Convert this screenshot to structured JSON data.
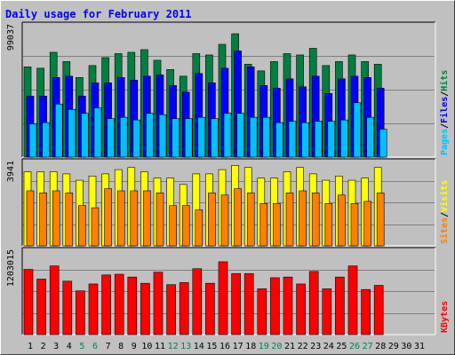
{
  "chart_data": [
    {
      "type": "bar",
      "title": "Daily usage for February 2011",
      "categories": [
        "1",
        "2",
        "3",
        "4",
        "5",
        "6",
        "7",
        "8",
        "9",
        "10",
        "11",
        "12",
        "13",
        "14",
        "15",
        "16",
        "17",
        "18",
        "19",
        "20",
        "21",
        "22",
        "23",
        "24",
        "25",
        "26",
        "27",
        "28",
        "29",
        "30",
        "31"
      ],
      "weekend_days": [
        "5",
        "6",
        "12",
        "13",
        "19",
        "20",
        "26",
        "27"
      ],
      "ymax_label": "99037",
      "ylim": [
        0,
        99037
      ],
      "right_labels": [
        "Pages",
        "/",
        "Files",
        "/",
        "Hits"
      ],
      "series": [
        {
          "name": "Hits",
          "color": "#008040",
          "values": [
            68000,
            67000,
            79000,
            72000,
            60000,
            69000,
            75000,
            78000,
            79000,
            81000,
            73000,
            66000,
            61000,
            78000,
            77000,
            85000,
            93000,
            70000,
            65000,
            72000,
            78000,
            77000,
            82000,
            69000,
            72000,
            77000,
            72000,
            70000,
            0,
            0,
            0
          ]
        },
        {
          "name": "Files",
          "color": "#0000ff",
          "values": [
            46000,
            46000,
            60000,
            61000,
            46000,
            56000,
            56000,
            60000,
            58000,
            61000,
            62000,
            54000,
            49000,
            63000,
            56000,
            67000,
            80000,
            68000,
            54000,
            52000,
            59000,
            53000,
            61000,
            48000,
            59000,
            61000,
            60000,
            52000,
            0,
            0,
            0
          ]
        },
        {
          "name": "Pages",
          "color": "#00c0ff",
          "values": [
            25000,
            26000,
            40000,
            36000,
            33000,
            37000,
            29000,
            30000,
            28000,
            33000,
            32000,
            29000,
            29000,
            30000,
            29000,
            33000,
            33000,
            30000,
            30000,
            26000,
            27000,
            26000,
            27000,
            27000,
            28000,
            41000,
            30000,
            21000,
            0,
            0,
            0
          ]
        }
      ]
    },
    {
      "type": "bar",
      "ymax_label": "3941",
      "ylim": [
        0,
        3941
      ],
      "right_labels": [
        "Sites",
        "/",
        "Visits"
      ],
      "series": [
        {
          "name": "Visits",
          "color": "#ffff00",
          "values": [
            3500,
            3500,
            3500,
            3400,
            3100,
            3300,
            3400,
            3600,
            3700,
            3500,
            3200,
            3200,
            2900,
            3400,
            3400,
            3600,
            3800,
            3700,
            3200,
            3200,
            3500,
            3700,
            3400,
            3100,
            3300,
            3100,
            3200,
            3700,
            0,
            0,
            0
          ]
        },
        {
          "name": "Sites",
          "color": "#ff8000",
          "values": [
            2600,
            2500,
            2600,
            2500,
            1900,
            1800,
            2700,
            2600,
            2600,
            2600,
            2500,
            1900,
            1900,
            1700,
            2500,
            2400,
            2700,
            2500,
            2000,
            2000,
            2500,
            2600,
            2500,
            2000,
            2400,
            2000,
            2100,
            2500,
            0,
            0,
            0
          ]
        }
      ]
    },
    {
      "type": "bar",
      "ymax_label": "1203015",
      "ylim": [
        0,
        1203015
      ],
      "right_labels": [
        "KBytes"
      ],
      "series": [
        {
          "name": "KBytes",
          "color": "#ff0000",
          "values": [
            940000,
            800000,
            990000,
            770000,
            630000,
            730000,
            860000,
            870000,
            830000,
            740000,
            900000,
            720000,
            750000,
            950000,
            740000,
            1050000,
            880000,
            880000,
            660000,
            820000,
            830000,
            730000,
            910000,
            660000,
            830000,
            990000,
            650000,
            710000,
            0,
            0,
            0
          ]
        }
      ]
    }
  ],
  "colors": {
    "background": "#c0c0c0",
    "title": "#0000ff",
    "axis_text": "#000000",
    "weekend_text": "#00805c",
    "grid": "#808080"
  }
}
